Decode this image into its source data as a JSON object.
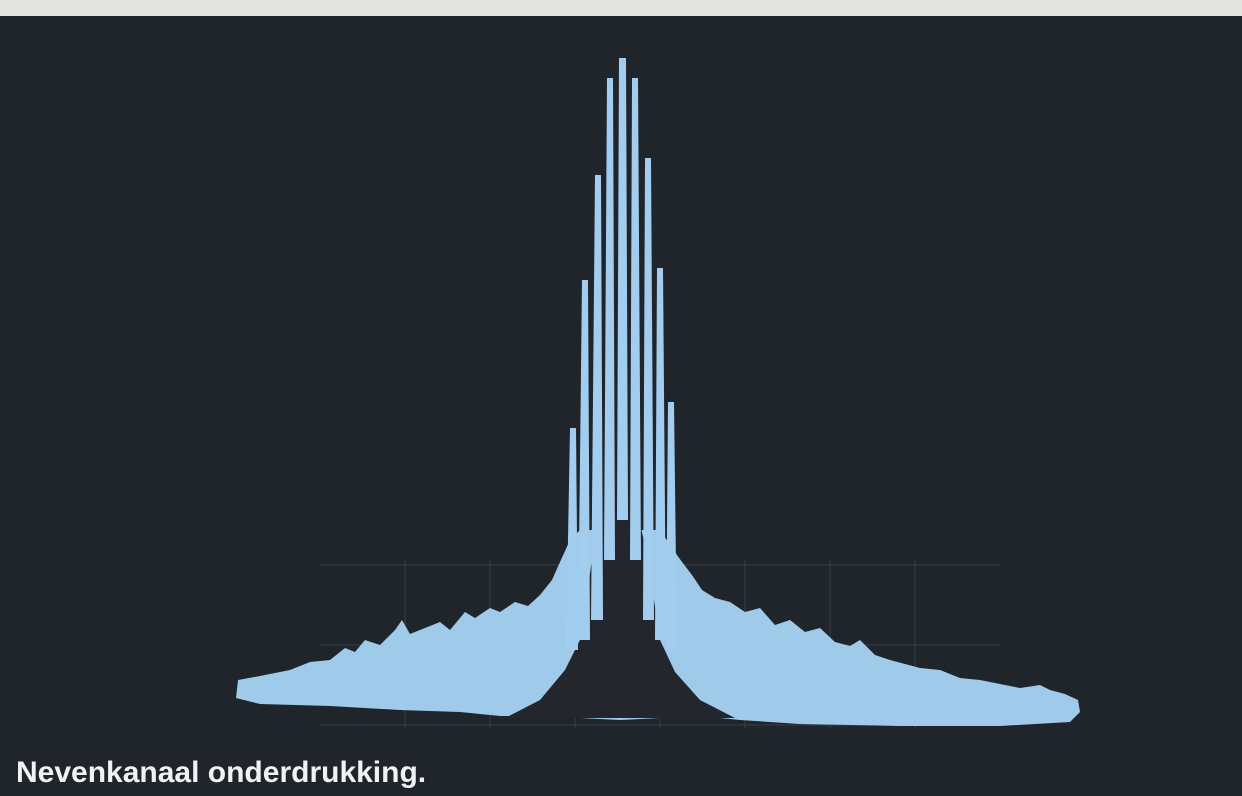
{
  "caption": "Nevenkanaal onderdrukking."
}
